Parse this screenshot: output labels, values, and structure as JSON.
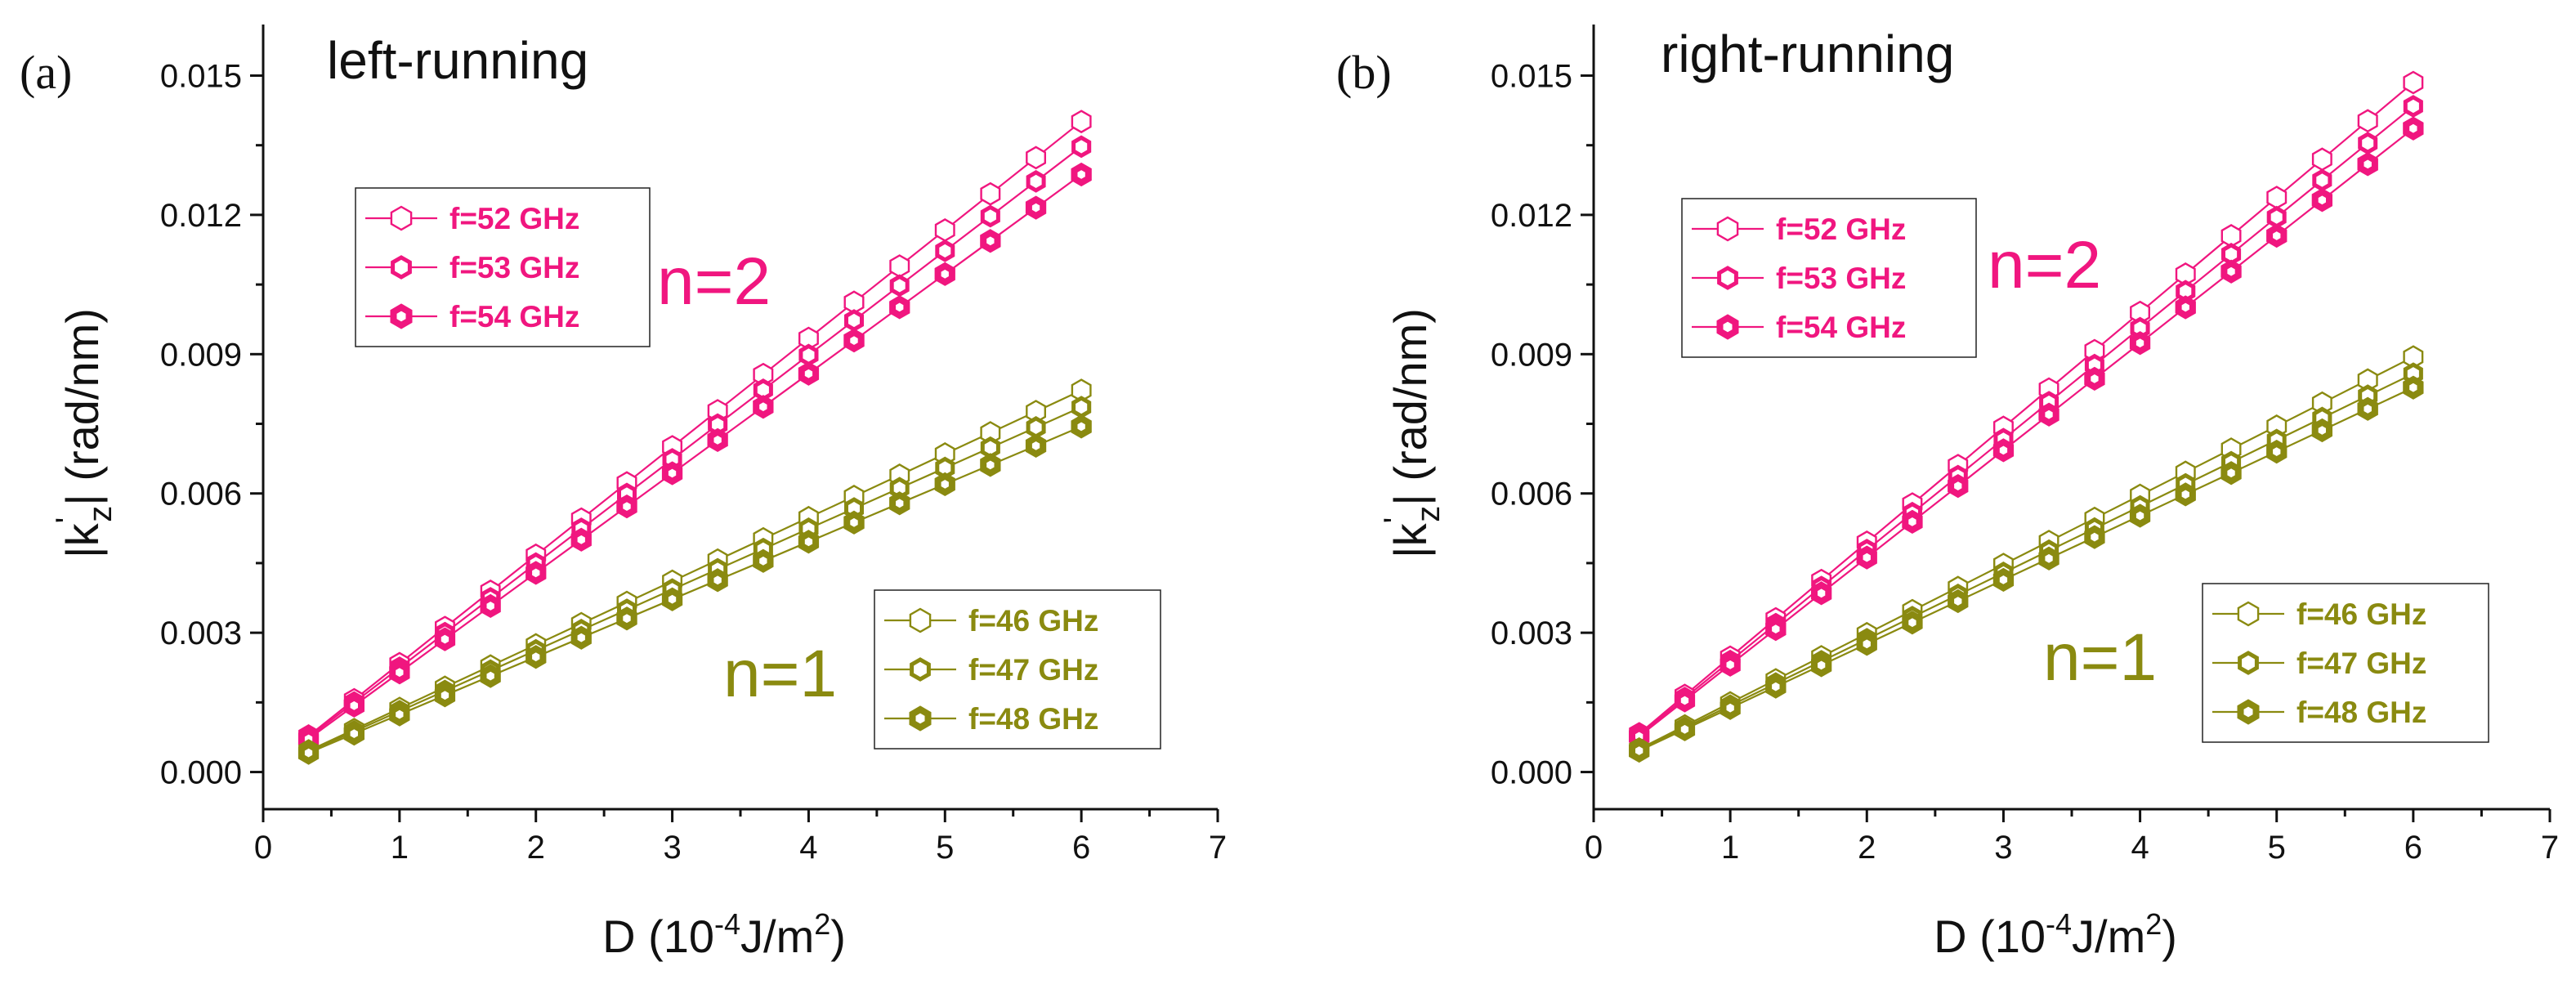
{
  "colors": {
    "n2": "#f0167f",
    "n1": "#8a8a10",
    "axis": "#111111"
  },
  "chart_data": [
    {
      "type": "line",
      "panel_label": "(a)",
      "title": "left-running",
      "xlabel_main": "D (10",
      "xlabel_exp": "-4",
      "xlabel_unit": "J/m",
      "xlabel_exp2": "2",
      "xlabel_close": ")",
      "ylabel_main": "|k",
      "ylabel_prime": "'",
      "ylabel_sub": "z",
      "ylabel_rest": "| (rad/nm)",
      "xlim": [
        0,
        7
      ],
      "ylim": [
        -0.0008,
        0.0161
      ],
      "xticks": [
        "0",
        "1",
        "2",
        "3",
        "4",
        "5",
        "6",
        "7"
      ],
      "yticks": [
        "0.000",
        "0.003",
        "0.006",
        "0.009",
        "0.012",
        "0.015"
      ],
      "x": [
        0.333,
        0.667,
        1.0,
        1.333,
        1.667,
        2.0,
        2.333,
        2.667,
        3.0,
        3.333,
        3.667,
        4.0,
        4.333,
        4.667,
        5.0,
        5.333,
        5.667,
        6.0
      ],
      "groups": [
        {
          "label": "n=2",
          "series": [
            {
              "name": "f=52 GHz",
              "slope": 0.002335,
              "marker": "thin"
            },
            {
              "name": "f=53 GHz",
              "slope": 0.002245,
              "marker": "medium"
            },
            {
              "name": "f=54 GHz",
              "slope": 0.002145,
              "marker": "thick"
            }
          ]
        },
        {
          "label": "n=1",
          "series": [
            {
              "name": "f=46 GHz",
              "slope": 0.00137,
              "marker": "thin"
            },
            {
              "name": "f=47 GHz",
              "slope": 0.00131,
              "marker": "medium"
            },
            {
              "name": "f=48 GHz",
              "slope": 0.00124,
              "marker": "thick"
            }
          ]
        }
      ]
    },
    {
      "type": "line",
      "panel_label": "(b)",
      "title": "right-running",
      "xlabel_main": "D (10",
      "xlabel_exp": "-4",
      "xlabel_unit": "J/m",
      "xlabel_exp2": "2",
      "xlabel_close": ")",
      "ylabel_main": "|k",
      "ylabel_prime": "'",
      "ylabel_sub": "z",
      "ylabel_rest": "| (rad/nm)",
      "xlim": [
        0,
        7
      ],
      "ylim": [
        -0.0008,
        0.0161
      ],
      "xticks": [
        "0",
        "1",
        "2",
        "3",
        "4",
        "5",
        "6",
        "7"
      ],
      "yticks": [
        "0.000",
        "0.003",
        "0.006",
        "0.009",
        "0.012",
        "0.015"
      ],
      "x": [
        0.333,
        0.667,
        1.0,
        1.333,
        1.667,
        2.0,
        2.333,
        2.667,
        3.0,
        3.333,
        3.667,
        4.0,
        4.333,
        4.667,
        5.0,
        5.333,
        5.667,
        6.0
      ],
      "groups": [
        {
          "label": "n=2",
          "series": [
            {
              "name": "f=52 GHz",
              "slope": 0.002475,
              "marker": "thin"
            },
            {
              "name": "f=53 GHz",
              "slope": 0.00239,
              "marker": "medium"
            },
            {
              "name": "f=54 GHz",
              "slope": 0.00231,
              "marker": "thick"
            }
          ]
        },
        {
          "label": "n=1",
          "series": [
            {
              "name": "f=46 GHz",
              "slope": 0.00149,
              "marker": "thin"
            },
            {
              "name": "f=47 GHz",
              "slope": 0.00143,
              "marker": "medium"
            },
            {
              "name": "f=48 GHz",
              "slope": 0.00138,
              "marker": "thick"
            }
          ]
        }
      ]
    }
  ]
}
